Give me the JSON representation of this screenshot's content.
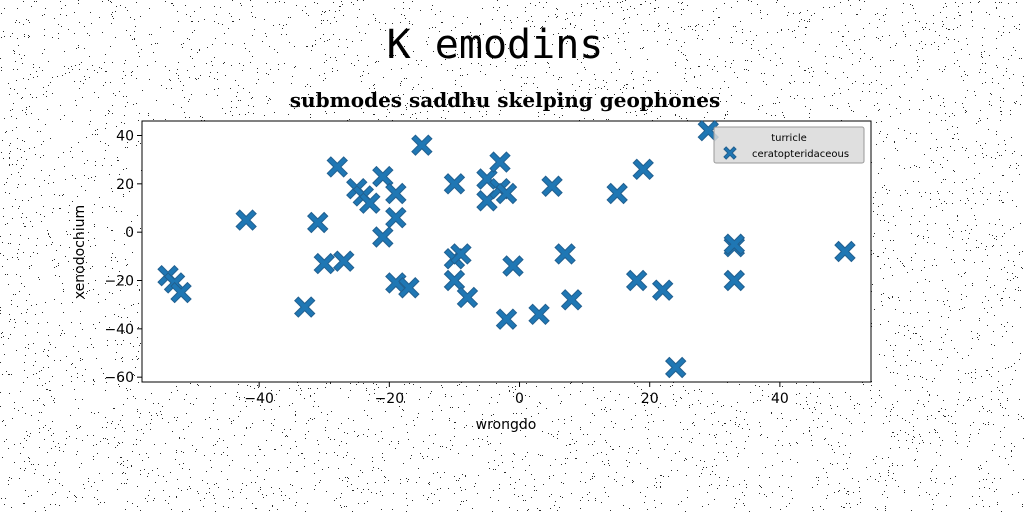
{
  "suptitle": "K emodins",
  "chart_data": {
    "type": "scatter",
    "title": "submodes saddhu skelping geophones",
    "xlabel": "wrongdo",
    "ylabel": "xenodochium",
    "xlim": [
      -58,
      54
    ],
    "ylim": [
      -62,
      46
    ],
    "xticks": [
      -40,
      -20,
      0,
      20,
      40
    ],
    "yticks": [
      -60,
      -40,
      -20,
      0,
      20,
      40
    ],
    "xtick_labels": [
      "−40",
      "−20",
      "0",
      "20",
      "40"
    ],
    "ytick_labels": [
      "−60",
      "−40",
      "−20",
      "0",
      "20",
      "40"
    ],
    "grid": false,
    "marker": "X",
    "color": "#1f77b4",
    "legend": {
      "title": "turricle",
      "entries": [
        "ceratopteridaceous"
      ],
      "placement": "upper right"
    },
    "series": [
      {
        "name": "ceratopteridaceous",
        "points": [
          [
            -54,
            -18
          ],
          [
            -53,
            -21
          ],
          [
            -52,
            -25
          ],
          [
            -42,
            5
          ],
          [
            -33,
            -31
          ],
          [
            -31,
            4
          ],
          [
            -30,
            -13
          ],
          [
            -28,
            27
          ],
          [
            -27,
            -12
          ],
          [
            -25,
            18
          ],
          [
            -24,
            15
          ],
          [
            -23,
            12
          ],
          [
            -21,
            23
          ],
          [
            -21,
            -2
          ],
          [
            -19,
            16
          ],
          [
            -19,
            6
          ],
          [
            -19,
            -21
          ],
          [
            -17,
            -23
          ],
          [
            -15,
            36
          ],
          [
            -10,
            20
          ],
          [
            -10,
            -11
          ],
          [
            -10,
            -20
          ],
          [
            -9,
            -9
          ],
          [
            -8,
            -27
          ],
          [
            -5,
            22
          ],
          [
            -5,
            13
          ],
          [
            -3,
            29
          ],
          [
            -3,
            18
          ],
          [
            -2,
            16
          ],
          [
            -2,
            -36
          ],
          [
            -1,
            -14
          ],
          [
            3,
            -34
          ],
          [
            5,
            19
          ],
          [
            7,
            -9
          ],
          [
            8,
            -28
          ],
          [
            15,
            16
          ],
          [
            18,
            -20
          ],
          [
            19,
            26
          ],
          [
            22,
            -24
          ],
          [
            24,
            -56
          ],
          [
            29,
            42
          ],
          [
            33,
            -6
          ],
          [
            33,
            -5
          ],
          [
            33,
            -20
          ],
          [
            50,
            -8
          ]
        ]
      }
    ]
  }
}
